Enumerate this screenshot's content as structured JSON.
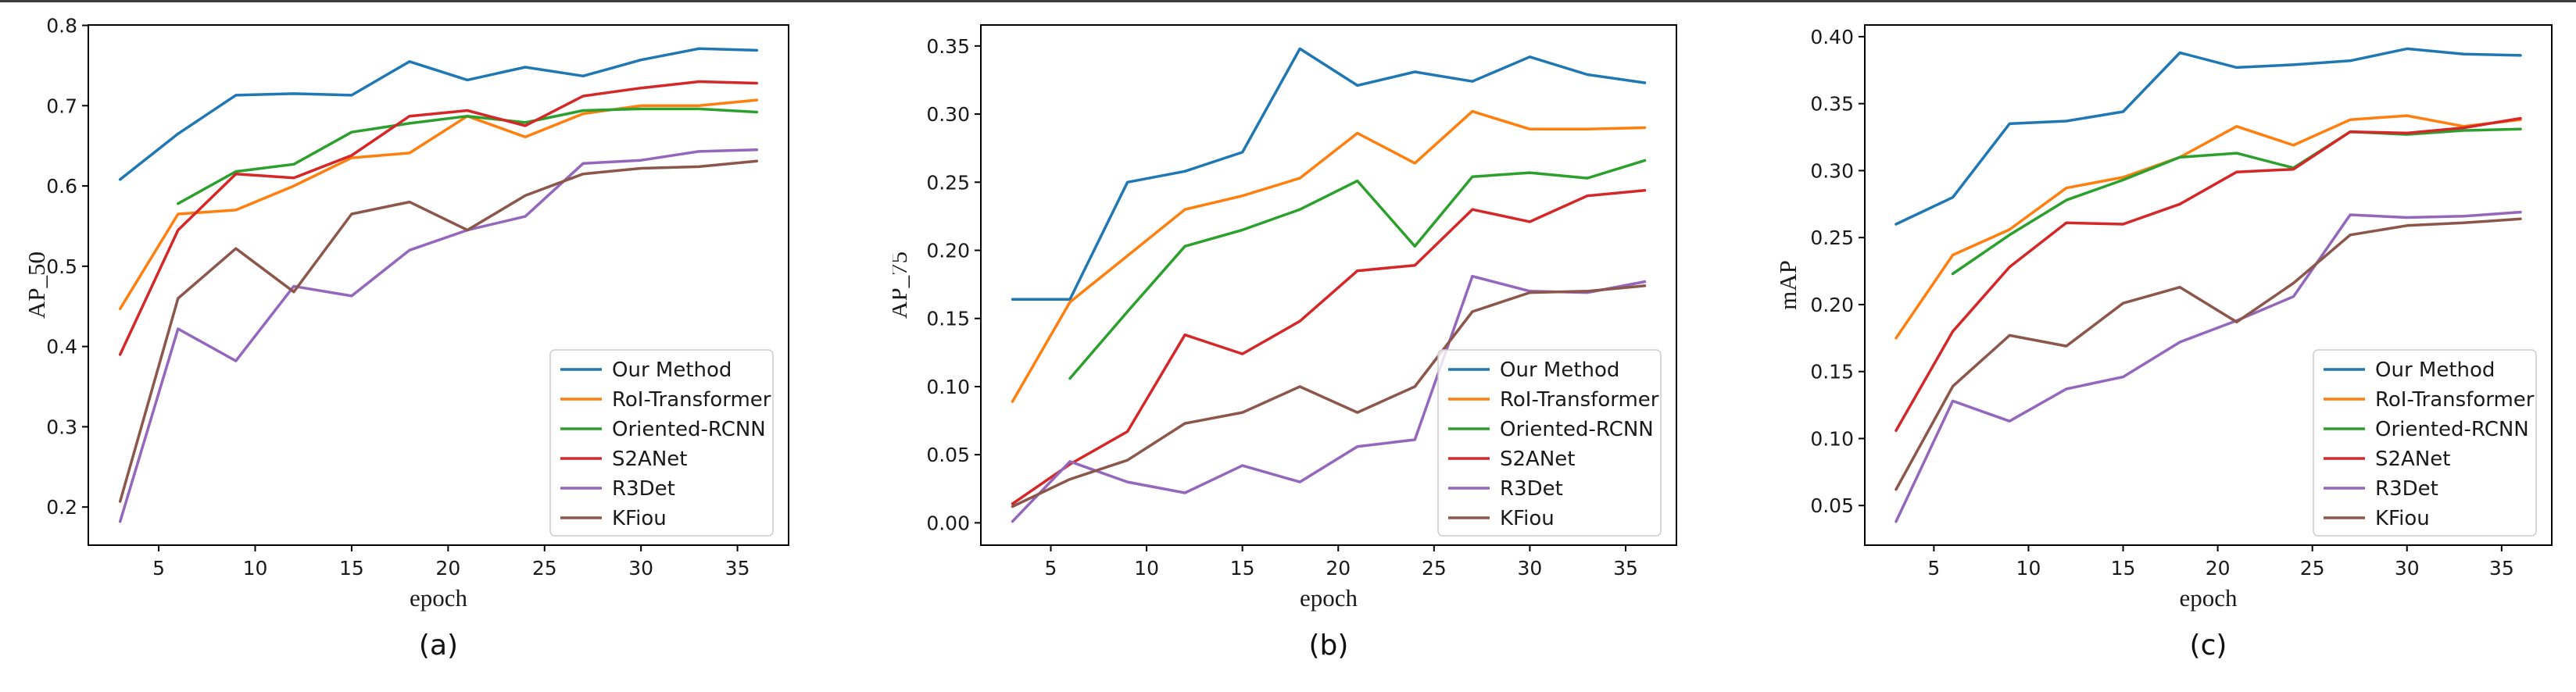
{
  "page": {
    "background": "#ffffff",
    "top_border_color": "#3c3c3c",
    "captions": {
      "a": "(a)",
      "b": "(b)",
      "c": "(c)"
    }
  },
  "legend": {
    "position": "lower right",
    "entries": [
      "Our Method",
      "RoI-Transformer",
      "Oriented-RCNN",
      "S2ANet",
      "R3Det",
      "KFiou"
    ]
  },
  "colors": {
    "our_method": "#1f77b4",
    "roi_transformer": "#ff7f0e",
    "oriented_rcnn": "#2ca02c",
    "s2anet": "#d62728",
    "r3det": "#9467bd",
    "kfiou": "#8c564b",
    "axis": "#000000",
    "text": "#1a1a1a",
    "legend_border": "#cccccc"
  },
  "chart_data": [
    {
      "type": "line",
      "title": "",
      "xlabel": "epoch",
      "ylabel": "AP_50",
      "grid": false,
      "legend_position": "lower right",
      "x": [
        3,
        6,
        9,
        12,
        15,
        18,
        21,
        24,
        27,
        30,
        33,
        36
      ],
      "xticks": [
        5,
        10,
        15,
        20,
        25,
        30,
        35
      ],
      "yticks": [
        0.2,
        0.3,
        0.4,
        0.5,
        0.6,
        0.7,
        0.8
      ],
      "ytick_decimals": 1,
      "xlim": [
        1.35,
        37.65
      ],
      "ylim": [
        0.1525,
        0.8005
      ],
      "series": [
        {
          "name": "Our Method",
          "color": "#1f77b4",
          "values": [
            0.608,
            0.665,
            0.713,
            0.715,
            0.713,
            0.755,
            0.732,
            0.748,
            0.737,
            0.757,
            0.771,
            0.769
          ]
        },
        {
          "name": "RoI-Transformer",
          "color": "#ff7f0e",
          "values": [
            0.447,
            0.565,
            0.57,
            0.6,
            0.635,
            0.641,
            0.687,
            0.661,
            0.69,
            0.7,
            0.7,
            0.707
          ]
        },
        {
          "name": "Oriented-RCNN",
          "color": "#2ca02c",
          "values": [
            null,
            0.578,
            0.618,
            0.627,
            0.667,
            0.678,
            0.687,
            0.679,
            0.694,
            0.696,
            0.696,
            0.692
          ]
        },
        {
          "name": "S2ANet",
          "color": "#d62728",
          "values": [
            0.39,
            0.545,
            0.615,
            0.61,
            0.638,
            0.687,
            0.694,
            0.675,
            0.712,
            0.722,
            0.73,
            0.728
          ]
        },
        {
          "name": "R3Det",
          "color": "#9467bd",
          "values": [
            0.182,
            0.422,
            0.382,
            0.475,
            0.463,
            0.52,
            0.545,
            0.562,
            0.628,
            0.632,
            0.643,
            0.645
          ]
        },
        {
          "name": "KFiou",
          "color": "#8c564b",
          "values": [
            0.207,
            0.46,
            0.522,
            0.468,
            0.565,
            0.58,
            0.545,
            0.588,
            0.615,
            0.622,
            0.624,
            0.631
          ]
        }
      ]
    },
    {
      "type": "line",
      "title": "",
      "xlabel": "epoch",
      "ylabel": "AP_75",
      "grid": false,
      "legend_position": "lower right",
      "x": [
        3,
        6,
        9,
        12,
        15,
        18,
        21,
        24,
        27,
        30,
        33,
        36
      ],
      "xticks": [
        5,
        10,
        15,
        20,
        25,
        30,
        35
      ],
      "yticks": [
        0.0,
        0.05,
        0.1,
        0.15,
        0.2,
        0.25,
        0.3,
        0.35
      ],
      "ytick_decimals": 2,
      "xlim": [
        1.35,
        37.65
      ],
      "ylim": [
        -0.0164,
        0.3654
      ],
      "series": [
        {
          "name": "Our Method",
          "color": "#1f77b4",
          "values": [
            0.164,
            0.164,
            0.25,
            0.258,
            0.272,
            0.348,
            0.321,
            0.331,
            0.324,
            0.342,
            0.329,
            0.323
          ]
        },
        {
          "name": "RoI-Transformer",
          "color": "#ff7f0e",
          "values": [
            0.089,
            0.162,
            0.196,
            0.23,
            0.24,
            0.253,
            0.286,
            0.264,
            0.302,
            0.289,
            0.289,
            0.29
          ]
        },
        {
          "name": "Oriented-RCNN",
          "color": "#2ca02c",
          "values": [
            null,
            0.106,
            0.155,
            0.203,
            0.215,
            0.23,
            0.251,
            0.203,
            0.254,
            0.257,
            0.253,
            0.266
          ]
        },
        {
          "name": "S2ANet",
          "color": "#d62728",
          "values": [
            0.014,
            0.043,
            0.067,
            0.138,
            0.124,
            0.148,
            0.185,
            0.189,
            0.23,
            0.221,
            0.24,
            0.244
          ]
        },
        {
          "name": "R3Det",
          "color": "#9467bd",
          "values": [
            0.001,
            0.045,
            0.03,
            0.022,
            0.042,
            0.03,
            0.056,
            0.061,
            0.181,
            0.17,
            0.169,
            0.177
          ]
        },
        {
          "name": "KFiou",
          "color": "#8c564b",
          "values": [
            0.012,
            0.032,
            0.046,
            0.073,
            0.081,
            0.1,
            0.081,
            0.1,
            0.155,
            0.169,
            0.17,
            0.174
          ]
        }
      ]
    },
    {
      "type": "line",
      "title": "",
      "xlabel": "epoch",
      "ylabel": "mAP",
      "grid": false,
      "legend_position": "lower right",
      "x": [
        3,
        6,
        9,
        12,
        15,
        18,
        21,
        24,
        27,
        30,
        33,
        36
      ],
      "xticks": [
        5,
        10,
        15,
        20,
        25,
        30,
        35
      ],
      "yticks": [
        0.05,
        0.1,
        0.15,
        0.2,
        0.25,
        0.3,
        0.35,
        0.4
      ],
      "ytick_decimals": 2,
      "xlim": [
        1.35,
        37.65
      ],
      "ylim": [
        0.0204,
        0.4087
      ],
      "series": [
        {
          "name": "Our Method",
          "color": "#1f77b4",
          "values": [
            0.26,
            0.28,
            0.335,
            0.337,
            0.344,
            0.388,
            0.377,
            0.379,
            0.382,
            0.391,
            0.387,
            0.386
          ]
        },
        {
          "name": "RoI-Transformer",
          "color": "#ff7f0e",
          "values": [
            0.175,
            0.237,
            0.256,
            0.287,
            0.295,
            0.31,
            0.333,
            0.319,
            0.338,
            0.341,
            0.333,
            0.338
          ]
        },
        {
          "name": "Oriented-RCNN",
          "color": "#2ca02c",
          "values": [
            null,
            0.223,
            0.252,
            0.278,
            0.293,
            0.31,
            0.313,
            0.302,
            0.329,
            0.327,
            0.33,
            0.331
          ]
        },
        {
          "name": "S2ANet",
          "color": "#d62728",
          "values": [
            0.106,
            0.18,
            0.228,
            0.261,
            0.26,
            0.275,
            0.299,
            0.301,
            0.329,
            0.328,
            0.332,
            0.339
          ]
        },
        {
          "name": "R3Det",
          "color": "#9467bd",
          "values": [
            0.038,
            0.128,
            0.113,
            0.137,
            0.146,
            0.172,
            0.188,
            0.206,
            0.267,
            0.265,
            0.266,
            0.269
          ]
        },
        {
          "name": "KFiou",
          "color": "#8c564b",
          "values": [
            0.062,
            0.139,
            0.177,
            0.169,
            0.201,
            0.213,
            0.187,
            0.216,
            0.252,
            0.259,
            0.261,
            0.264
          ]
        }
      ]
    }
  ]
}
